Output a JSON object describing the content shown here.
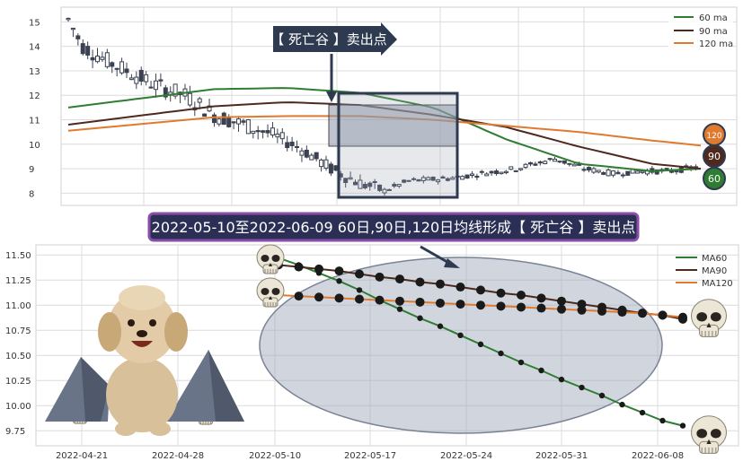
{
  "colors": {
    "ma60": "#2e7d32",
    "ma90": "#4e2a1e",
    "ma120": "#e07a2e",
    "candle": "#3a4150",
    "annotation_bg": "#2e3a50",
    "banner_bg": "#2b2f55",
    "banner_border": "#8a4da8",
    "ellipse": "#9aa3b5",
    "grid": "#dcdcdc"
  },
  "top_chart": {
    "y_ticks": [
      8,
      9,
      10,
      11,
      12,
      13,
      14,
      15
    ],
    "legend": [
      "60 ma",
      "90 ma",
      "120 ma"
    ],
    "annotation": "【 死亡谷 】卖出点",
    "badges": [
      "120",
      "90",
      "60"
    ]
  },
  "banner": "2022-05-10至2022-06-09 60日,90日,120日均线形成【 死亡谷 】卖出点",
  "bottom_chart": {
    "y_ticks": [
      "11.50",
      "11.25",
      "11.00",
      "10.75",
      "10.50",
      "10.25",
      "10.00",
      "9.75"
    ],
    "x_ticks": [
      "2022-04-21",
      "2022-04-28",
      "2022-05-10",
      "2022-05-17",
      "2022-05-24",
      "2022-05-31",
      "2022-06-08"
    ],
    "legend": [
      "MA60",
      "MA90",
      "MA120"
    ]
  },
  "chart_data": [
    {
      "type": "candlestick",
      "y_range": [
        7.5,
        15.6
      ],
      "n_bars": 130,
      "ma60": [
        [
          0,
          11.5
        ],
        [
          30,
          12.25
        ],
        [
          45,
          12.3
        ],
        [
          60,
          12.1
        ],
        [
          75,
          11.5
        ],
        [
          90,
          10.2
        ],
        [
          105,
          9.2
        ],
        [
          120,
          8.9
        ],
        [
          130,
          9.0
        ]
      ],
      "ma90": [
        [
          0,
          10.8
        ],
        [
          30,
          11.55
        ],
        [
          45,
          11.72
        ],
        [
          60,
          11.6
        ],
        [
          75,
          11.2
        ],
        [
          90,
          10.7
        ],
        [
          105,
          9.9
        ],
        [
          120,
          9.2
        ],
        [
          130,
          9.0
        ]
      ],
      "ma120": [
        [
          0,
          10.55
        ],
        [
          30,
          11.1
        ],
        [
          45,
          11.15
        ],
        [
          60,
          11.15
        ],
        [
          75,
          11.0
        ],
        [
          90,
          10.75
        ],
        [
          105,
          10.5
        ],
        [
          120,
          10.15
        ],
        [
          130,
          9.95
        ]
      ],
      "price_path": [
        [
          0,
          15.1
        ],
        [
          3,
          14.0
        ],
        [
          8,
          13.4
        ],
        [
          12,
          13.0
        ],
        [
          18,
          12.4
        ],
        [
          24,
          12.0
        ],
        [
          30,
          11.2
        ],
        [
          36,
          10.8
        ],
        [
          42,
          10.4
        ],
        [
          48,
          9.8
        ],
        [
          54,
          9.0
        ],
        [
          60,
          8.4
        ],
        [
          65,
          8.1
        ],
        [
          70,
          8.5
        ],
        [
          78,
          8.6
        ],
        [
          85,
          8.8
        ],
        [
          92,
          9.0
        ],
        [
          100,
          9.4
        ],
        [
          106,
          9.0
        ],
        [
          112,
          8.8
        ],
        [
          118,
          8.9
        ],
        [
          124,
          8.9
        ],
        [
          130,
          9.1
        ]
      ]
    },
    {
      "type": "line",
      "x_ticks": [
        "2022-04-21",
        "2022-04-28",
        "2022-05-10",
        "2022-05-17",
        "2022-05-24",
        "2022-05-31",
        "2022-06-08"
      ],
      "ylim": [
        9.6,
        11.6
      ],
      "series": [
        {
          "name": "MA60",
          "values": [
            11.47,
            11.4,
            11.32,
            11.24,
            11.15,
            11.05,
            10.96,
            10.87,
            10.79,
            10.7,
            10.61,
            10.52,
            10.43,
            10.35,
            10.26,
            10.18,
            10.1,
            10.01,
            9.93,
            9.85,
            9.8
          ]
        },
        {
          "name": "MA90",
          "values": [
            11.4,
            11.38,
            11.36,
            11.34,
            11.31,
            11.28,
            11.26,
            11.23,
            11.21,
            11.18,
            11.15,
            11.12,
            11.1,
            11.07,
            11.04,
            11.01,
            10.98,
            10.95,
            10.92,
            10.9,
            10.86
          ]
        },
        {
          "name": "MA120",
          "values": [
            11.1,
            11.09,
            11.08,
            11.07,
            11.06,
            11.05,
            11.04,
            11.03,
            11.02,
            11.01,
            11.0,
            10.99,
            10.98,
            10.97,
            10.96,
            10.95,
            10.94,
            10.93,
            10.92,
            10.9,
            10.88
          ]
        }
      ]
    }
  ]
}
